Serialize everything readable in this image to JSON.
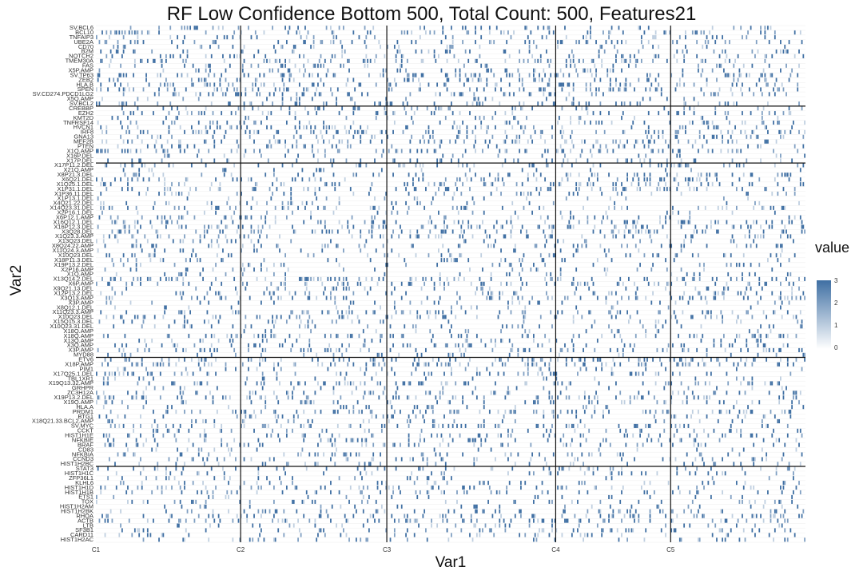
{
  "chart_data": {
    "type": "heatmap",
    "title": "RF Low Confidence Bottom 500, Total Count: 500, Features21",
    "xlabel": "Var1",
    "ylabel": "Var2",
    "x_ticks": [
      "C1",
      "C2",
      "C3",
      "C4",
      "C5"
    ],
    "x_tick_sample_index": [
      0,
      102,
      205,
      324,
      405
    ],
    "n_samples": 500,
    "group_boundary_after_row": [
      16,
      28,
      69,
      92
    ],
    "y_labels": [
      "SV.BCL6",
      "BCL10",
      "TNFAIP3",
      "UBE2A",
      "CD70",
      "B2M",
      "NOTCH2",
      "TMEM30A",
      "FAS",
      "X5P.AMP",
      "SV.TP63",
      "ZEB2",
      "HLA.B",
      "SPEN",
      "SV.CD274.PDCD1LG2",
      "X5Q.AMP",
      "SV.BCL2",
      "CREBBP",
      "EZH2",
      "KMT2D",
      "TNFRSF14",
      "HVCN1",
      "IRF8",
      "GNA13",
      "MEF2B",
      "PTEN",
      "X1Q.AMP",
      "X16P.DEL",
      "X17P.DEL",
      "X17P11.2.DEL",
      "X21Q.AMP",
      "X8P21.3.DEL",
      "X6Q21.DEL",
      "X1Q25.1.DEL",
      "X1P31.1.DEL",
      "X1P36.11.DEL",
      "X1P13.1.DEL",
      "X4Q21.22.DEL",
      "X14Q23.31.DEL",
      "X2P16.1.DEL",
      "X6P12.1.AMP",
      "X16Q12.1.DEL",
      "X16P12.3.DEL",
      "X3Q28.DEL",
      "X1Q23.3.AMP",
      "X13Q23.DEL",
      "X8Q24.22.AMP",
      "X11Q24.3.AMP",
      "X10Q23.DEL",
      "X18P11.3.DEL",
      "X19P13.2.DEL",
      "X2P16.AMP",
      "X1Q.AMP",
      "X13Q14.2.DEL",
      "X6P.AMP",
      "X9Q21.13.DEL",
      "X12P13.2.DEL",
      "X3Q13.AMP",
      "X3P.AMP",
      "X8Q12.1.DEL",
      "X11Q23.3.AMP",
      "X10Q23.DEL",
      "X15Q15.3.DEL",
      "X10Q23.31.DEL",
      "X18Q.AMP",
      "X18Q.AMP",
      "X13Q.AMP",
      "X3Q.AMP",
      "X3P.AMP",
      "MYD88",
      "ETV6",
      "X18P.AMP",
      "PIM1",
      "X17Q25.1.DEL",
      "TBL1XR1",
      "X19Q13.32.AMP",
      "GRHPR",
      "ZC3H12A",
      "X19P13.2.DEL",
      "X19Q.AMP",
      "HLA.A",
      "PRDM1",
      "BTG1",
      "X18Q21.33.BCL2.AMP",
      "SV.MYC",
      "CCKT",
      "HIST1H1E",
      "NFKBIE",
      "BRAF",
      "CD83",
      "NFKBIA",
      "CCND3",
      "HIST1H2BC",
      "STAT3",
      "HIST1H1C",
      "ZFP36L1",
      "KLHL6",
      "HIST1H1D",
      "HIST1H1B",
      "ETS1",
      "TOX",
      "HIST1H2AM",
      "HIST1H2BK",
      "RHOA",
      "ACTB",
      "LTB",
      "SF3B1",
      "CARD11",
      "HIST1H2AC"
    ],
    "value_range": [
      0,
      3
    ],
    "legend": {
      "title": "value",
      "ticks": [
        "3",
        "2",
        "1",
        "0"
      ],
      "position": "right"
    },
    "colorscale": {
      "low": "#ffffff",
      "high": "#3f6fa3"
    },
    "cell_values_note_seed": 20240501
  }
}
